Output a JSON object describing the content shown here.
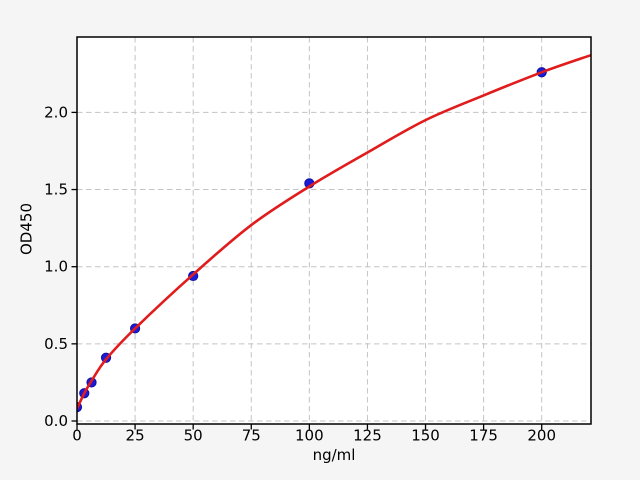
{
  "window": {
    "background_color": "#f5f5f5"
  },
  "chart_data": {
    "type": "scatter",
    "title": "",
    "xlabel": "ng/ml",
    "ylabel": "OD450",
    "xlim": [
      0,
      221
    ],
    "ylim": [
      -0.02,
      2.49
    ],
    "plot_background": "#ffffff",
    "spine_color": "#000000",
    "grid": {
      "show": true,
      "color": "#c4c4c4",
      "style": "dashed"
    },
    "xticks": {
      "values": [
        0,
        25,
        50,
        75,
        100,
        125,
        150,
        175,
        200
      ],
      "labels": [
        "0",
        "25",
        "50",
        "75",
        "100",
        "125",
        "150",
        "175",
        "200"
      ]
    },
    "yticks": {
      "values": [
        0,
        0.5,
        1.0,
        1.5,
        2.0
      ],
      "labels": [
        "0.0",
        "0.5",
        "1.0",
        "1.5",
        "2.0"
      ]
    },
    "series": [
      {
        "name": "standard-points",
        "type": "scatter",
        "color": "#1b1bd9",
        "edge_color": "#10109e",
        "x": [
          0,
          3.125,
          6.25,
          12.5,
          25,
          50,
          100,
          200
        ],
        "y": [
          0.09,
          0.18,
          0.25,
          0.41,
          0.6,
          0.94,
          1.54,
          2.26
        ]
      },
      {
        "name": "fit-curve",
        "type": "line",
        "color": "#e01c1c",
        "x": [
          0,
          3.125,
          6.25,
          12.5,
          25,
          50,
          75,
          100,
          125,
          150,
          175,
          200,
          221
        ],
        "y": [
          0.08,
          0.18,
          0.26,
          0.4,
          0.6,
          0.95,
          1.27,
          1.52,
          1.74,
          1.95,
          2.11,
          2.26,
          2.37
        ]
      }
    ]
  }
}
